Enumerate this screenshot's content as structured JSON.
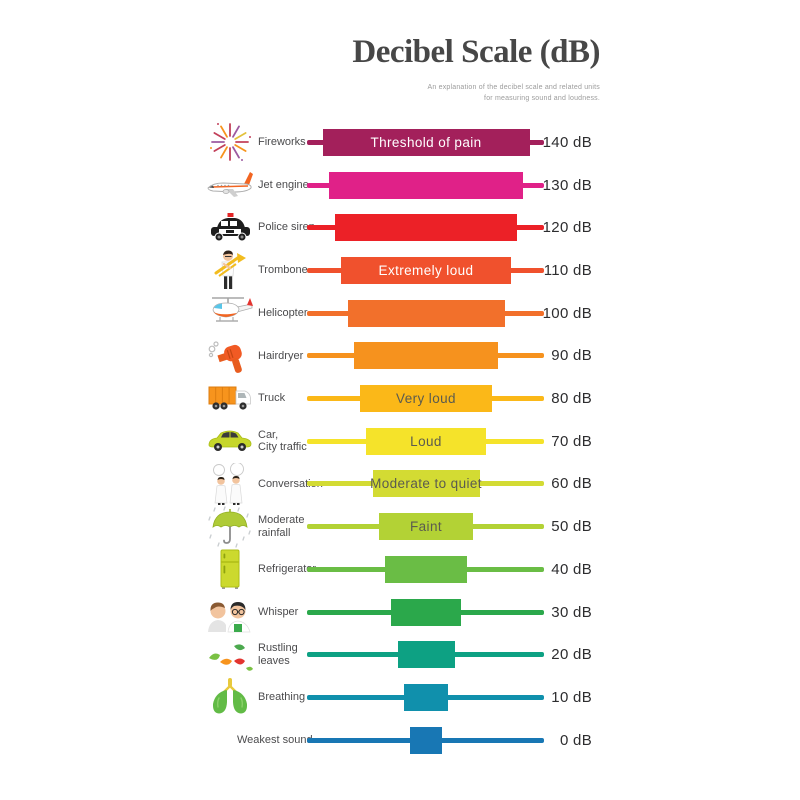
{
  "title": "Decibel Scale (dB)",
  "subtitle_line1": "An explanation of the decibel scale and related units",
  "subtitle_line2": "for measuring sound and loudness.",
  "rows": [
    {
      "label_lines": [
        "Fireworks"
      ],
      "icon": "fireworks-icon",
      "value": 140,
      "db_label": "140 dB",
      "bar_text": "Threshold of pain",
      "bar_text_color": "#FFFFFF",
      "color": "#A3205B"
    },
    {
      "label_lines": [
        "Jet engine"
      ],
      "icon": "jet-engine-icon",
      "value": 130,
      "db_label": "130 dB",
      "bar_text": "",
      "bar_text_color": "",
      "color": "#E02188"
    },
    {
      "label_lines": [
        "Police siren"
      ],
      "icon": "police-car-icon",
      "value": 120,
      "db_label": "120 dB",
      "bar_text": "",
      "bar_text_color": "",
      "color": "#EC2127"
    },
    {
      "label_lines": [
        "Trombone"
      ],
      "icon": "trombone-icon",
      "value": 110,
      "db_label": "110 dB",
      "bar_text": "Extremely loud",
      "bar_text_color": "#FFFFFF",
      "color": "#F0512D"
    },
    {
      "label_lines": [
        "Helicopter"
      ],
      "icon": "helicopter-icon",
      "value": 100,
      "db_label": "100 dB",
      "bar_text": "",
      "bar_text_color": "",
      "color": "#F2702B"
    },
    {
      "label_lines": [
        "Hairdryer"
      ],
      "icon": "hairdryer-icon",
      "value": 90,
      "db_label": "90 dB",
      "bar_text": "",
      "bar_text_color": "",
      "color": "#F6921E"
    },
    {
      "label_lines": [
        "Truck"
      ],
      "icon": "truck-icon",
      "value": 80,
      "db_label": "80 dB",
      "bar_text": "Very loud",
      "bar_text_color": "#5B5B4F",
      "color": "#FBB818"
    },
    {
      "label_lines": [
        "Car,",
        "City traffic"
      ],
      "icon": "car-icon",
      "value": 70,
      "db_label": "70 dB",
      "bar_text": "Loud",
      "bar_text_color": "#5B5B4F",
      "color": "#F5E32A"
    },
    {
      "label_lines": [
        "Conversation"
      ],
      "icon": "conversation-icon",
      "value": 60,
      "db_label": "60 dB",
      "bar_text": "Moderate to quiet",
      "bar_text_color": "#5B5B4F",
      "color": "#D3DB33"
    },
    {
      "label_lines": [
        "Moderate",
        "rainfall"
      ],
      "icon": "umbrella-icon",
      "value": 50,
      "db_label": "50 dB",
      "bar_text": "Faint",
      "bar_text_color": "#5B5B4F",
      "color": "#B3D235"
    },
    {
      "label_lines": [
        "Refrigerator"
      ],
      "icon": "refrigerator-icon",
      "value": 40,
      "db_label": "40 dB",
      "bar_text": "",
      "bar_text_color": "",
      "color": "#6ABD45"
    },
    {
      "label_lines": [
        "Whisper"
      ],
      "icon": "whisper-icon",
      "value": 30,
      "db_label": "30 dB",
      "bar_text": "",
      "bar_text_color": "",
      "color": "#2BA84B"
    },
    {
      "label_lines": [
        "Rustling",
        "leaves"
      ],
      "icon": "rustling-leaves-icon",
      "value": 20,
      "db_label": "20 dB",
      "bar_text": "",
      "bar_text_color": "",
      "color": "#0DA183"
    },
    {
      "label_lines": [
        "Breathing"
      ],
      "icon": "breathing-icon",
      "value": 10,
      "db_label": "10 dB",
      "bar_text": "",
      "bar_text_color": "",
      "color": "#1090AC"
    },
    {
      "label_lines": [
        "Weakest sound"
      ],
      "icon": "",
      "value": 0,
      "db_label": "0 dB",
      "bar_text": "",
      "bar_text_color": "",
      "color": "#1877B4"
    }
  ],
  "chart_data": {
    "type": "bar",
    "title": "Decibel Scale (dB)",
    "subtitle": "An explanation of the decibel scale and related units for measuring sound and loudness.",
    "unit": "dB",
    "categories": [
      "Fireworks",
      "Jet engine",
      "Police siren",
      "Trombone",
      "Helicopter",
      "Hairdryer",
      "Truck",
      "Car, City traffic",
      "Conversation",
      "Moderate rainfall",
      "Refrigerator",
      "Whisper",
      "Rustling leaves",
      "Breathing",
      "Weakest sound"
    ],
    "values": [
      140,
      130,
      120,
      110,
      100,
      90,
      80,
      70,
      60,
      50,
      40,
      30,
      20,
      10,
      0
    ],
    "value_labels": [
      "140 dB",
      "130 dB",
      "120 dB",
      "110 dB",
      "100 dB",
      "90 dB",
      "80 dB",
      "70 dB",
      "60 dB",
      "50 dB",
      "40 dB",
      "30 dB",
      "20 dB",
      "10 dB",
      "0 dB"
    ],
    "annotations": [
      {
        "value": 140,
        "text": "Threshold of pain"
      },
      {
        "value": 110,
        "text": "Extremely loud"
      },
      {
        "value": 80,
        "text": "Very loud"
      },
      {
        "value": 70,
        "text": "Loud"
      },
      {
        "value": 60,
        "text": "Moderate to quiet"
      },
      {
        "value": 50,
        "text": "Faint"
      }
    ],
    "colors": [
      "#A3205B",
      "#E02188",
      "#EC2127",
      "#F0512D",
      "#F2702B",
      "#F6921E",
      "#FBB818",
      "#F5E32A",
      "#D3DB33",
      "#B3D235",
      "#6ABD45",
      "#2BA84B",
      "#0DA183",
      "#1090AC",
      "#1877B4"
    ],
    "legend": false,
    "grid": false,
    "orientation": "horizontal"
  }
}
